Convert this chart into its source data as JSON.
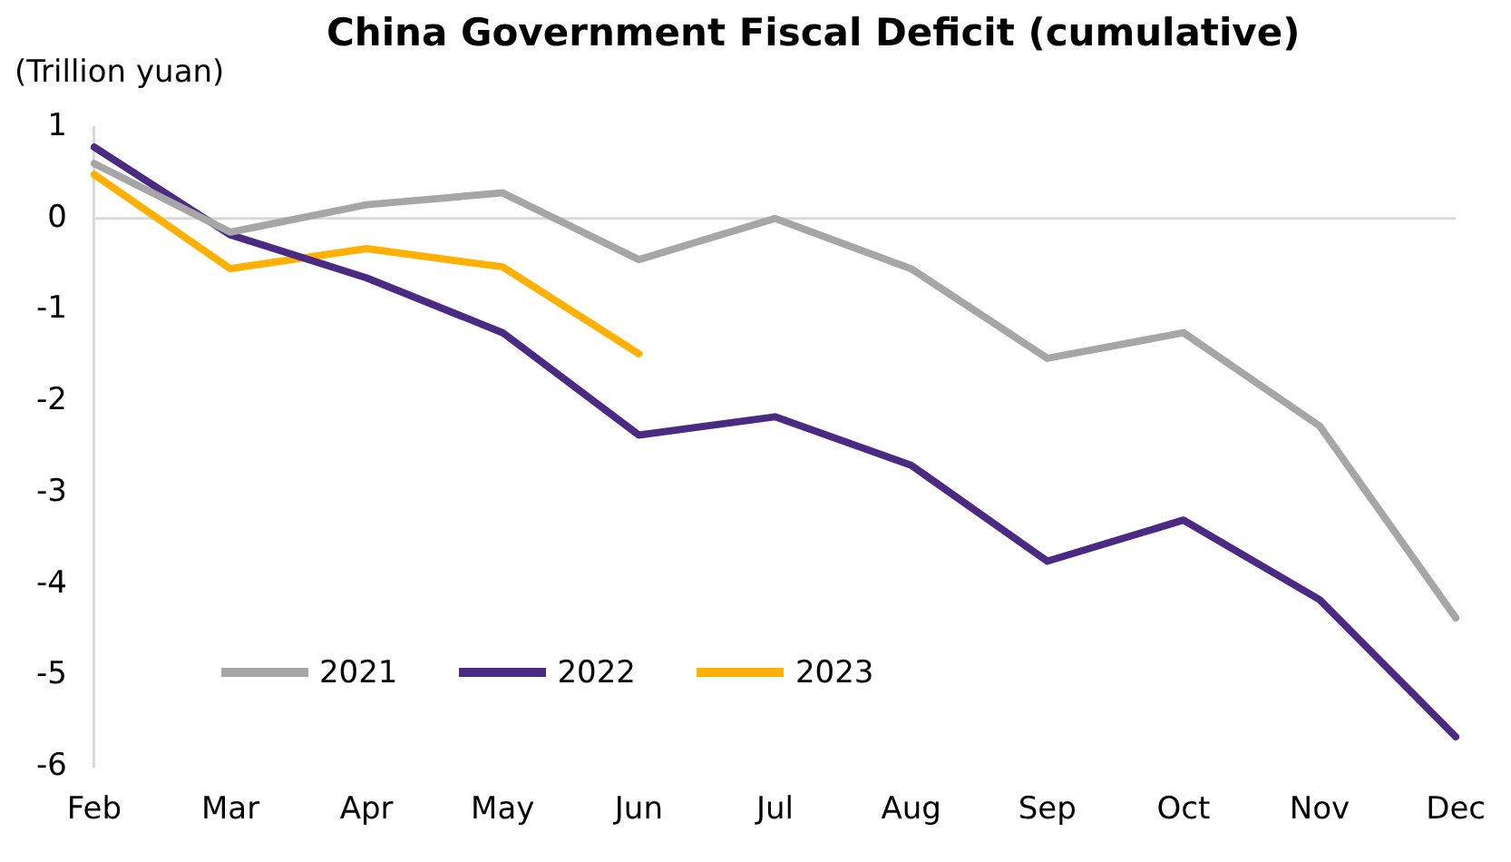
{
  "chart_data": {
    "type": "line",
    "title": "China Government Fiscal Deficit (cumulative)",
    "ylabel": "(Trillion yuan)",
    "categories": [
      "Feb",
      "Mar",
      "Apr",
      "May",
      "Jun",
      "Jul",
      "Aug",
      "Sep",
      "Oct",
      "Nov",
      "Dec"
    ],
    "series": [
      {
        "name": "2021",
        "color": "#a6a6a6",
        "values": [
          0.6,
          -0.15,
          0.15,
          0.28,
          -0.45,
          0,
          -0.55,
          -1.53,
          -1.25,
          -2.27,
          -4.37
        ]
      },
      {
        "name": "2022",
        "color": "#4b2a83",
        "values": [
          0.78,
          -0.18,
          -0.65,
          -1.25,
          -2.37,
          -2.17,
          -2.7,
          -3.75,
          -3.3,
          -4.17,
          -5.67
        ]
      },
      {
        "name": "2023",
        "color": "#ffb000",
        "values": [
          0.48,
          -0.55,
          -0.33,
          -0.53,
          -1.48,
          null,
          null,
          null,
          null,
          null,
          null
        ]
      }
    ],
    "ylim": [
      -6,
      1
    ],
    "yticks": [
      -6,
      -5,
      -4,
      -3,
      -2,
      -1,
      0,
      1
    ],
    "grid": false,
    "legend": "bottom left",
    "marker": "none",
    "line_style": "solid",
    "ref_lines": [
      {
        "axis": "y",
        "value": 0,
        "color": "#d9d9d9"
      }
    ]
  }
}
